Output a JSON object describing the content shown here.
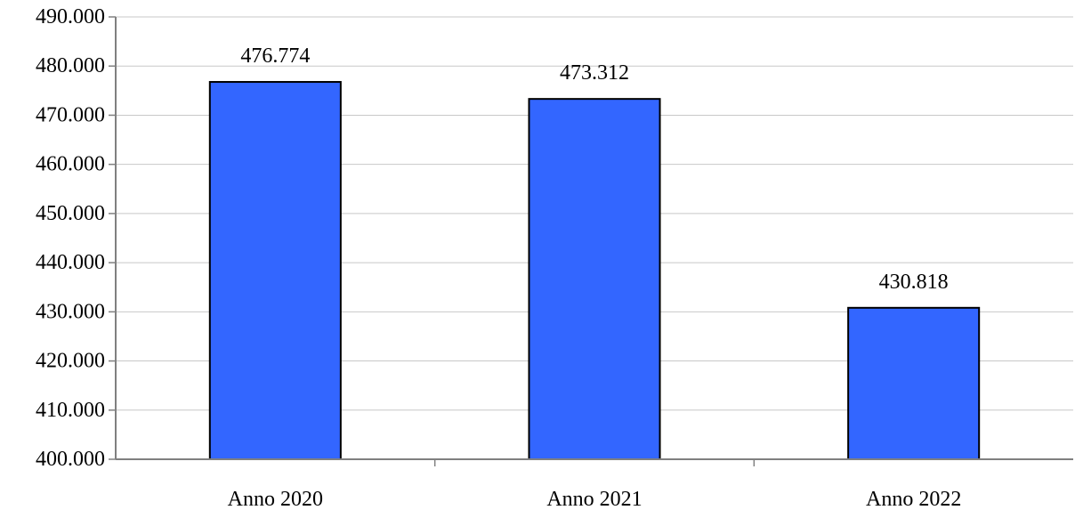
{
  "chart_data": {
    "type": "bar",
    "title": "",
    "xlabel": "",
    "ylabel": "",
    "categories": [
      "Anno 2020",
      "Anno 2021",
      "Anno 2022"
    ],
    "values": [
      476774,
      473312,
      430818
    ],
    "value_labels": [
      "476.774",
      "473.312",
      "430.818"
    ],
    "ylim": [
      400000,
      490000
    ],
    "y_ticks": [
      400000,
      410000,
      420000,
      430000,
      440000,
      450000,
      460000,
      470000,
      480000,
      490000
    ],
    "y_tick_labels": [
      "400.000",
      "410.000",
      "420.000",
      "430.000",
      "440.000",
      "450.000",
      "460.000",
      "470.000",
      "480.000",
      "490.000"
    ],
    "grid": true,
    "legend": "none",
    "bar_color": "#3366ff"
  }
}
